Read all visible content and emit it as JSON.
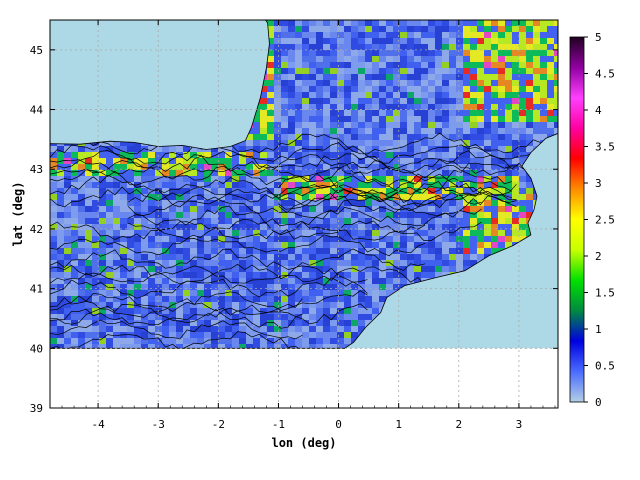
{
  "chart_data": {
    "type": "heatmap",
    "xlabel": "lon (deg)",
    "ylabel": "lat (deg)",
    "xlim": [
      -4.8,
      3.65
    ],
    "ylim": [
      39,
      45.5
    ],
    "data_lat_min": 40,
    "grid": true,
    "x_ticks": [
      "-4",
      "-3",
      "-2",
      "-1",
      "0",
      "1",
      "2",
      "3"
    ],
    "y_ticks": [
      "39",
      "40",
      "41",
      "42",
      "43",
      "44",
      "45"
    ],
    "colorbar": {
      "min": 0,
      "max": 5,
      "ticks": [
        "0",
        "0.5",
        "1",
        "1.5",
        "2",
        "2.5",
        "3",
        "3.5",
        "4",
        "4.5",
        "5"
      ],
      "colors": [
        "#b4cfe6",
        "#4a6cff",
        "#0000e0",
        "#008a40",
        "#00e000",
        "#c8ff00",
        "#ffff00",
        "#ff8c00",
        "#ff0000",
        "#ff00a0",
        "#ff40ff",
        "#9000a0",
        "#200020"
      ]
    },
    "colors": {
      "sea": "#add8e6",
      "land_base": "#4f6ee8",
      "contour": "#000000",
      "grid": "#aaaaaa"
    }
  }
}
